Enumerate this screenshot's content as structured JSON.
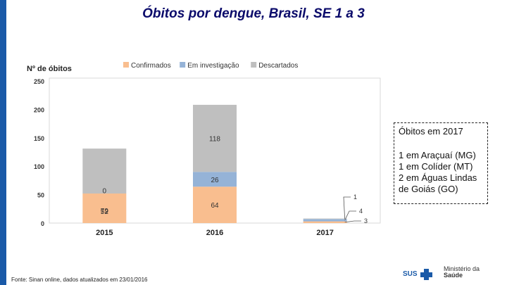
{
  "slide": {
    "title": "Óbitos por dengue, Brasil, SE 1 a 3",
    "source": "Fonte: Sinan online, dados atualizados em 23/01/2016",
    "note": {
      "title": "Óbitos em 2017",
      "lines": [
        "1 em Araçuaí (MG)",
        "1 em Colíder (MT)",
        "2 em Águas Lindas",
        "de Goiás (GO)"
      ]
    },
    "logos": {
      "sus": "SUS",
      "ministry_line1": "Ministério da",
      "ministry_line2": "Saúde"
    }
  },
  "chart_data": {
    "type": "bar",
    "stacked": true,
    "ylabel": "Nº de óbitos",
    "categories": [
      "2015",
      "2016",
      "2017"
    ],
    "ylim": [
      0,
      250
    ],
    "yticks": [
      "0",
      "50",
      "100",
      "150",
      "200",
      "250"
    ],
    "series": [
      {
        "name": "Confirmados",
        "values": [
          52,
          64,
          3
        ],
        "color": "#f9be8f"
      },
      {
        "name": "Em investigação",
        "values": [
          0,
          26,
          4
        ],
        "color": "#95b3d7"
      },
      {
        "name": "Descartados",
        "values": [
          79,
          118,
          1
        ],
        "color": "#bfbfbf"
      }
    ],
    "labels": [
      [
        "52",
        "0",
        "79"
      ],
      [
        "64",
        "26",
        "118"
      ],
      [
        "3",
        "4",
        "1"
      ]
    ],
    "legend": "top",
    "grid": false
  }
}
